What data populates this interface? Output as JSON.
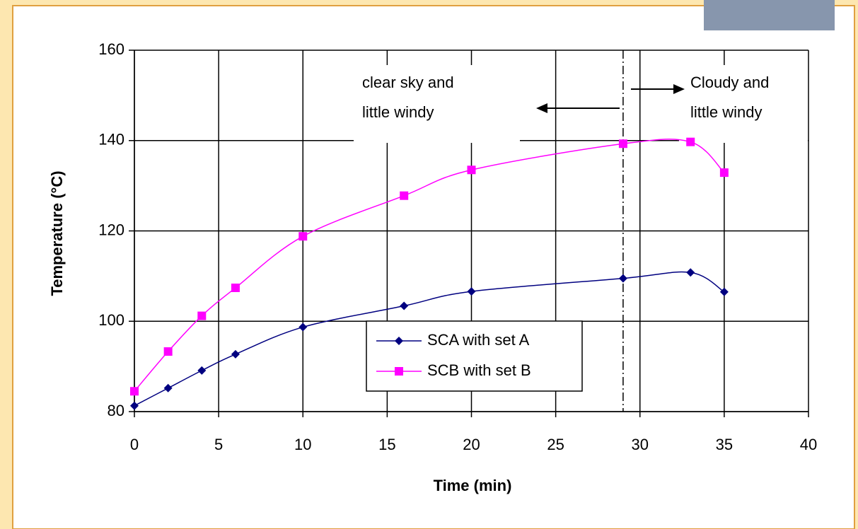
{
  "chart_data": {
    "type": "line",
    "x_label": "Time (min)",
    "y_label": "Temperature (°C)",
    "series": [
      {
        "name": "SCA with set A",
        "color": "#000080",
        "marker": "diamond",
        "x": [
          0,
          2,
          4,
          6,
          10,
          16,
          20,
          29,
          33,
          35
        ],
        "values": [
          81.3,
          85.2,
          89.1,
          92.7,
          98.7,
          103.4,
          106.6,
          109.5,
          110.8,
          106.5
        ]
      },
      {
        "name": "SCB with set B",
        "color": "#ff00ff",
        "marker": "square",
        "x": [
          0,
          2,
          4,
          6,
          10,
          16,
          20,
          29,
          33,
          35
        ],
        "values": [
          84.5,
          93.3,
          101.2,
          107.4,
          118.8,
          127.8,
          133.5,
          139.3,
          139.7,
          132.9
        ]
      }
    ],
    "xlim": [
      0,
      40
    ],
    "xticks": [
      0,
      5,
      10,
      15,
      20,
      25,
      30,
      35,
      40
    ],
    "ylim": [
      80,
      160
    ],
    "yticks": [
      80,
      100,
      120,
      140,
      160
    ],
    "grid": true,
    "divider_x": 29,
    "annotations": [
      {
        "lines": [
          "clear sky and",
          "little windy"
        ]
      },
      {
        "lines": [
          "Cloudy and",
          "little windy"
        ]
      }
    ]
  }
}
